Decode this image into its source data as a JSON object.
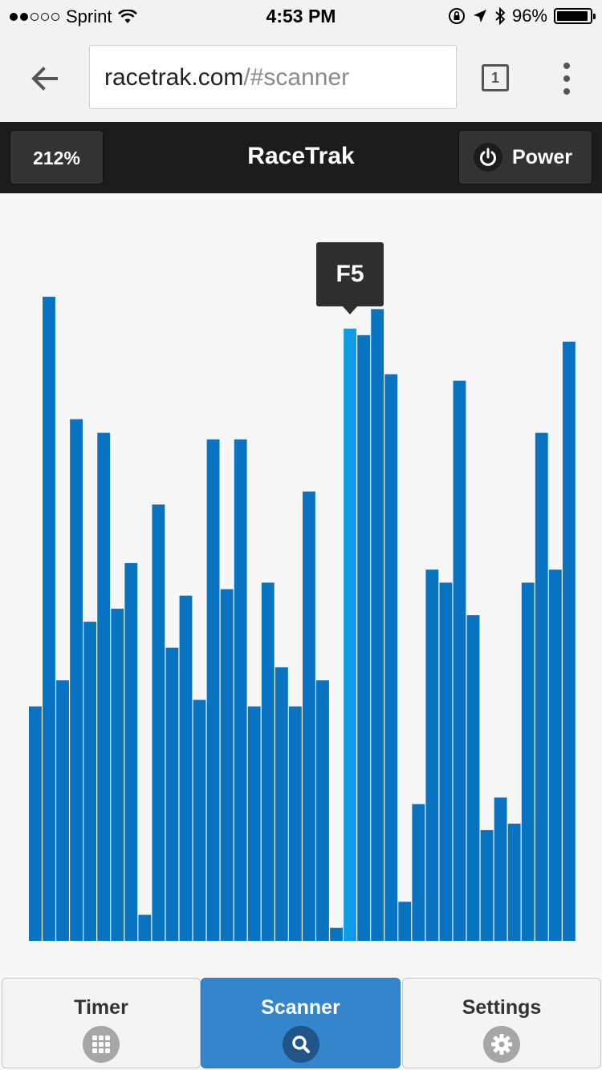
{
  "status_bar": {
    "carrier": "Sprint",
    "time": "4:53 PM",
    "battery": "96%"
  },
  "browser": {
    "url_domain": "racetrak.com",
    "url_path": "/#scanner",
    "tab_count": "1"
  },
  "header": {
    "zoom": "212%",
    "title": "RaceTrak",
    "power_label": "Power"
  },
  "tooltip": {
    "label": "F5"
  },
  "chart_data": {
    "type": "bar",
    "highlight_index": 23,
    "highlight_label": "F5",
    "colors": {
      "bar": "#0874c1",
      "highlight": "#0d9de6"
    },
    "ylim": [
      0,
      1
    ],
    "values": [
      0.36,
      0.989,
      0.4,
      0.801,
      0.49,
      0.78,
      0.51,
      0.58,
      0.04,
      0.67,
      0.45,
      0.53,
      0.37,
      0.77,
      0.54,
      0.77,
      0.36,
      0.55,
      0.42,
      0.36,
      0.69,
      0.4,
      0.02,
      0.94,
      0.93,
      0.97,
      0.87,
      0.06,
      0.21,
      0.57,
      0.55,
      0.86,
      0.5,
      0.17,
      0.22,
      0.18,
      0.55,
      0.78,
      0.57,
      0.92
    ]
  },
  "nav": {
    "items": [
      {
        "label": "Timer",
        "icon": "grid-icon"
      },
      {
        "label": "Scanner",
        "icon": "search-icon"
      },
      {
        "label": "Settings",
        "icon": "gear-icon"
      }
    ],
    "active": 1
  }
}
